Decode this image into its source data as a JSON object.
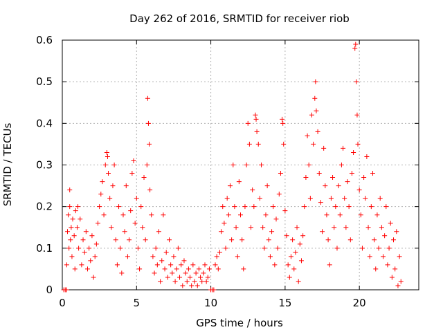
{
  "chart_data": {
    "type": "scatter",
    "title": "Day 262 of 2016, SRMTID for receiver riob",
    "xlabel": "GPS time / hours",
    "ylabel": "SRMTID / TECUs",
    "xlim": [
      0,
      24
    ],
    "ylim": [
      0,
      0.6
    ],
    "x_ticks": [
      0,
      5,
      10,
      15,
      20
    ],
    "x_tick_labels": [
      "0",
      "5",
      "10",
      "15",
      "20"
    ],
    "y_ticks": [
      0,
      0.1,
      0.2,
      0.3,
      0.4,
      0.5,
      0.6
    ],
    "y_tick_labels": [
      "0",
      "0.1",
      "0.2",
      "0.3",
      "0.4",
      "0.5",
      "0.6"
    ],
    "grid": true,
    "marker": "plus",
    "color": "#ff0000",
    "x_range_of_data": [
      0,
      22.8
    ],
    "series": [
      {
        "name": "SRMTID",
        "points": [
          [
            0.1,
            0.0
          ],
          [
            0.2,
            0.0
          ],
          [
            0.3,
            0.0
          ],
          [
            0.3,
            0.06
          ],
          [
            0.35,
            0.14
          ],
          [
            0.4,
            0.18
          ],
          [
            0.45,
            0.1
          ],
          [
            0.5,
            0.24
          ],
          [
            0.5,
            0.2
          ],
          [
            0.55,
            0.12
          ],
          [
            0.6,
            0.15
          ],
          [
            0.65,
            0.08
          ],
          [
            0.7,
            0.17
          ],
          [
            0.8,
            0.13
          ],
          [
            0.85,
            0.05
          ],
          [
            0.9,
            0.19
          ],
          [
            1.0,
            0.15
          ],
          [
            1.05,
            0.2
          ],
          [
            1.1,
            0.1
          ],
          [
            1.2,
            0.17
          ],
          [
            1.3,
            0.06
          ],
          [
            1.4,
            0.12
          ],
          [
            1.5,
            0.09
          ],
          [
            1.6,
            0.14
          ],
          [
            1.7,
            0.05
          ],
          [
            1.8,
            0.1
          ],
          [
            1.9,
            0.07
          ],
          [
            2.0,
            0.13
          ],
          [
            2.1,
            0.03
          ],
          [
            2.2,
            0.08
          ],
          [
            2.3,
            0.11
          ],
          [
            2.4,
            0.16
          ],
          [
            2.5,
            0.2
          ],
          [
            2.6,
            0.23
          ],
          [
            2.7,
            0.26
          ],
          [
            2.8,
            0.18
          ],
          [
            2.9,
            0.3
          ],
          [
            3.0,
            0.33
          ],
          [
            3.05,
            0.32
          ],
          [
            3.1,
            0.28
          ],
          [
            3.2,
            0.22
          ],
          [
            3.3,
            0.15
          ],
          [
            3.4,
            0.25
          ],
          [
            3.5,
            0.3
          ],
          [
            3.6,
            0.12
          ],
          [
            3.7,
            0.06
          ],
          [
            3.8,
            0.2
          ],
          [
            3.9,
            0.1
          ],
          [
            4.0,
            0.04
          ],
          [
            4.1,
            0.18
          ],
          [
            4.2,
            0.14
          ],
          [
            4.3,
            0.25
          ],
          [
            4.4,
            0.08
          ],
          [
            4.5,
            0.12
          ],
          [
            4.6,
            0.19
          ],
          [
            4.7,
            0.28
          ],
          [
            4.8,
            0.31
          ],
          [
            4.9,
            0.16
          ],
          [
            5.0,
            0.22
          ],
          [
            5.1,
            0.1
          ],
          [
            5.2,
            0.05
          ],
          [
            5.3,
            0.2
          ],
          [
            5.4,
            0.15
          ],
          [
            5.5,
            0.27
          ],
          [
            5.6,
            0.12
          ],
          [
            5.7,
            0.3
          ],
          [
            5.75,
            0.46
          ],
          [
            5.8,
            0.4
          ],
          [
            5.85,
            0.35
          ],
          [
            5.9,
            0.24
          ],
          [
            6.0,
            0.18
          ],
          [
            6.1,
            0.08
          ],
          [
            6.2,
            0.04
          ],
          [
            6.3,
            0.1
          ],
          [
            6.4,
            0.06
          ],
          [
            6.5,
            0.14
          ],
          [
            6.6,
            0.02
          ],
          [
            6.7,
            0.07
          ],
          [
            6.8,
            0.18
          ],
          [
            6.9,
            0.05
          ],
          [
            7.0,
            0.09
          ],
          [
            7.1,
            0.03
          ],
          [
            7.2,
            0.12
          ],
          [
            7.3,
            0.06
          ],
          [
            7.4,
            0.04
          ],
          [
            7.5,
            0.08
          ],
          [
            7.6,
            0.02
          ],
          [
            7.7,
            0.05
          ],
          [
            7.8,
            0.1
          ],
          [
            7.9,
            0.03
          ],
          [
            8.0,
            0.06
          ],
          [
            8.1,
            0.01
          ],
          [
            8.2,
            0.07
          ],
          [
            8.3,
            0.04
          ],
          [
            8.4,
            0.02
          ],
          [
            8.5,
            0.05
          ],
          [
            8.6,
            0.03
          ],
          [
            8.7,
            0.01
          ],
          [
            8.8,
            0.06
          ],
          [
            8.9,
            0.02
          ],
          [
            9.0,
            0.04
          ],
          [
            9.1,
            0.01
          ],
          [
            9.2,
            0.05
          ],
          [
            9.3,
            0.03
          ],
          [
            9.4,
            0.02
          ],
          [
            9.5,
            0.04
          ],
          [
            9.6,
            0.06
          ],
          [
            9.7,
            0.02
          ],
          [
            9.8,
            0.03
          ],
          [
            9.9,
            0.05
          ],
          [
            10.0,
            0.0
          ],
          [
            10.1,
            0.0
          ],
          [
            10.2,
            0.0
          ],
          [
            10.3,
            0.06
          ],
          [
            10.4,
            0.08
          ],
          [
            10.5,
            0.05
          ],
          [
            10.6,
            0.09
          ],
          [
            10.7,
            0.14
          ],
          [
            10.8,
            0.2
          ],
          [
            10.9,
            0.16
          ],
          [
            11.0,
            0.1
          ],
          [
            11.1,
            0.22
          ],
          [
            11.2,
            0.18
          ],
          [
            11.3,
            0.25
          ],
          [
            11.4,
            0.12
          ],
          [
            11.5,
            0.3
          ],
          [
            11.6,
            0.2
          ],
          [
            11.7,
            0.15
          ],
          [
            11.8,
            0.08
          ],
          [
            11.9,
            0.26
          ],
          [
            12.0,
            0.18
          ],
          [
            12.1,
            0.12
          ],
          [
            12.2,
            0.05
          ],
          [
            12.3,
            0.2
          ],
          [
            12.4,
            0.3
          ],
          [
            12.5,
            0.4
          ],
          [
            12.6,
            0.35
          ],
          [
            12.7,
            0.15
          ],
          [
            12.8,
            0.24
          ],
          [
            12.9,
            0.2
          ],
          [
            13.0,
            0.42
          ],
          [
            13.05,
            0.41
          ],
          [
            13.1,
            0.38
          ],
          [
            13.2,
            0.35
          ],
          [
            13.3,
            0.22
          ],
          [
            13.4,
            0.3
          ],
          [
            13.5,
            0.15
          ],
          [
            13.6,
            0.1
          ],
          [
            13.7,
            0.18
          ],
          [
            13.8,
            0.25
          ],
          [
            13.9,
            0.12
          ],
          [
            14.0,
            0.08
          ],
          [
            14.1,
            0.14
          ],
          [
            14.2,
            0.2
          ],
          [
            14.3,
            0.06
          ],
          [
            14.4,
            0.17
          ],
          [
            14.5,
            0.1
          ],
          [
            14.6,
            0.23
          ],
          [
            14.7,
            0.28
          ],
          [
            14.8,
            0.41
          ],
          [
            14.85,
            0.4
          ],
          [
            14.9,
            0.35
          ],
          [
            15.0,
            0.19
          ],
          [
            15.1,
            0.13
          ],
          [
            15.2,
            0.06
          ],
          [
            15.3,
            0.03
          ],
          [
            15.4,
            0.08
          ],
          [
            15.5,
            0.12
          ],
          [
            15.6,
            0.05
          ],
          [
            15.7,
            0.09
          ],
          [
            15.8,
            0.15
          ],
          [
            15.9,
            0.02
          ],
          [
            16.0,
            0.11
          ],
          [
            16.1,
            0.07
          ],
          [
            16.2,
            0.13
          ],
          [
            16.3,
            0.2
          ],
          [
            16.4,
            0.27
          ],
          [
            16.5,
            0.37
          ],
          [
            16.6,
            0.3
          ],
          [
            16.7,
            0.22
          ],
          [
            16.8,
            0.42
          ],
          [
            16.9,
            0.35
          ],
          [
            17.0,
            0.46
          ],
          [
            17.05,
            0.5
          ],
          [
            17.1,
            0.43
          ],
          [
            17.2,
            0.38
          ],
          [
            17.3,
            0.28
          ],
          [
            17.4,
            0.21
          ],
          [
            17.5,
            0.14
          ],
          [
            17.6,
            0.34
          ],
          [
            17.7,
            0.25
          ],
          [
            17.8,
            0.18
          ],
          [
            17.9,
            0.12
          ],
          [
            18.0,
            0.06
          ],
          [
            18.1,
            0.22
          ],
          [
            18.2,
            0.27
          ],
          [
            18.3,
            0.15
          ],
          [
            18.4,
            0.2
          ],
          [
            18.5,
            0.1
          ],
          [
            18.6,
            0.25
          ],
          [
            18.7,
            0.18
          ],
          [
            18.8,
            0.3
          ],
          [
            18.9,
            0.34
          ],
          [
            19.0,
            0.22
          ],
          [
            19.1,
            0.15
          ],
          [
            19.2,
            0.26
          ],
          [
            19.3,
            0.2
          ],
          [
            19.4,
            0.12
          ],
          [
            19.5,
            0.28
          ],
          [
            19.6,
            0.33
          ],
          [
            19.7,
            0.58
          ],
          [
            19.75,
            0.59
          ],
          [
            19.8,
            0.5
          ],
          [
            19.85,
            0.42
          ],
          [
            19.9,
            0.35
          ],
          [
            20.0,
            0.24
          ],
          [
            20.1,
            0.18
          ],
          [
            20.2,
            0.1
          ],
          [
            20.3,
            0.27
          ],
          [
            20.4,
            0.22
          ],
          [
            20.5,
            0.32
          ],
          [
            20.6,
            0.15
          ],
          [
            20.7,
            0.08
          ],
          [
            20.8,
            0.2
          ],
          [
            20.9,
            0.28
          ],
          [
            21.0,
            0.12
          ],
          [
            21.1,
            0.05
          ],
          [
            21.2,
            0.18
          ],
          [
            21.3,
            0.1
          ],
          [
            21.4,
            0.22
          ],
          [
            21.5,
            0.15
          ],
          [
            21.6,
            0.08
          ],
          [
            21.7,
            0.13
          ],
          [
            21.8,
            0.2
          ],
          [
            21.9,
            0.06
          ],
          [
            22.0,
            0.1
          ],
          [
            22.1,
            0.16
          ],
          [
            22.2,
            0.03
          ],
          [
            22.3,
            0.12
          ],
          [
            22.4,
            0.05
          ],
          [
            22.5,
            0.14
          ],
          [
            22.6,
            0.01
          ],
          [
            22.7,
            0.08
          ],
          [
            22.8,
            0.02
          ]
        ]
      }
    ]
  }
}
